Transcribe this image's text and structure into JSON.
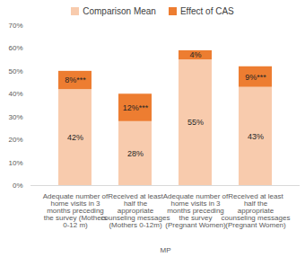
{
  "chart_data": {
    "type": "bar",
    "stacked": true,
    "data_labels": true,
    "grid": false,
    "legend": "top",
    "x_label": "MP",
    "categories": [
      "Adequate number of home visits in 3 months preceding the survey (Mothers 0-12 m)",
      "Received at least half the appropriate counseling messages (Mothers 0-12m)",
      "Adequate number of home visits in 3 months preceding the survey (Pregnant Women)",
      "Received at least half the appropriate counseling messages (Pregnant Women)"
    ],
    "series": [
      {
        "name": "Comparison Mean",
        "color": "#f8cbad",
        "values": [
          42,
          28,
          55,
          43
        ],
        "value_labels": [
          "42%",
          "28%",
          "55%",
          "43%"
        ]
      },
      {
        "name": "Effect of CAS",
        "color": "#ed7d31",
        "values": [
          8,
          12,
          4,
          9
        ],
        "value_labels": [
          "8%***",
          "12%***",
          "4%",
          "9%***"
        ]
      }
    ],
    "ylim": [
      0,
      70
    ],
    "yticks": [
      {
        "value": 0,
        "label": "0%"
      },
      {
        "value": 10,
        "label": "10%"
      },
      {
        "value": 20,
        "label": "20%"
      },
      {
        "value": 30,
        "label": "30%"
      },
      {
        "value": 40,
        "label": "40%"
      },
      {
        "value": 50,
        "label": "50%"
      },
      {
        "value": 60,
        "label": "60%"
      },
      {
        "value": 70,
        "label": "70%"
      }
    ]
  }
}
